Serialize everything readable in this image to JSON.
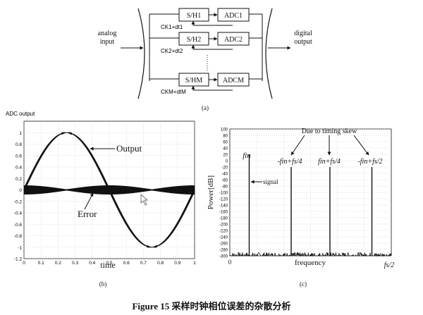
{
  "figure_caption": "Figure 15 采样时钟相位误差的杂散分析",
  "panel_a": {
    "sub_label": "(a)",
    "analog_input": [
      "analog",
      "input"
    ],
    "digital_output": [
      "digital",
      "output"
    ],
    "channels": [
      {
        "sh": "S/H1",
        "adc": "ADC1",
        "clock": "CK1+dt1"
      },
      {
        "sh": "S/H2",
        "adc": "ADC2",
        "clock": "CK2+dt2"
      },
      {
        "sh": "S/HM",
        "adc": "ADCM",
        "clock": "CKM+dtM"
      }
    ]
  },
  "panel_b": {
    "sub_label": "(b)",
    "title": "ADC output",
    "xlabel": "time",
    "output_label": "Output",
    "error_label": "Error",
    "x_ticks": [
      "0",
      "0.1",
      "0.2",
      "0.3",
      "0.4",
      "0.5",
      "0.6",
      "0.7",
      "0.8",
      "0.9",
      "1"
    ],
    "y_ticks": [
      "1",
      "0.8",
      "0.6",
      "0.4",
      "0.2",
      "0",
      "-0.2",
      "-0.4",
      "-0.6",
      "-0.8",
      "-1",
      "-1.2"
    ]
  },
  "panel_c": {
    "sub_label": "(c)",
    "ylabel": "Power[dB]",
    "xlabel": "frequency",
    "x_start": "0",
    "x_end": "fs/2",
    "skew_annotation": "Due to timing skew",
    "signal_label": "signal",
    "y_ticks": [
      "100",
      "80",
      "60",
      "40",
      "20",
      "0",
      "-20",
      "-40",
      "-60",
      "-80",
      "-100",
      "-120",
      "-140",
      "-160",
      "-180",
      "-200",
      "-220",
      "-240",
      "-260",
      "-280",
      "-300"
    ],
    "spur_labels": [
      "fin",
      "-fin+fs/4",
      "fin+fs/4",
      "-fin+fs/2"
    ]
  },
  "chart_data": [
    {
      "type": "line",
      "title": "ADC output",
      "xlabel": "time",
      "ylabel": "",
      "xlim": [
        0,
        1
      ],
      "ylim": [
        -1.2,
        1.2
      ],
      "grid": true,
      "series": [
        {
          "name": "Output",
          "x": [
            0,
            0.125,
            0.25,
            0.375,
            0.5,
            0.625,
            0.75,
            0.875,
            1
          ],
          "values": [
            0,
            0.707,
            1,
            0.707,
            0,
            -0.707,
            -1,
            -0.707,
            0
          ]
        },
        {
          "name": "Error",
          "x": [
            0,
            0.125,
            0.25,
            0.375,
            0.5,
            0.625,
            0.75,
            0.875,
            1
          ],
          "values": [
            0.07,
            0.05,
            0,
            0.05,
            0.07,
            0.05,
            0,
            0.05,
            0.07
          ]
        }
      ]
    },
    {
      "type": "line",
      "xlabel": "frequency",
      "ylabel": "Power[dB]",
      "ylim": [
        -300,
        100
      ],
      "grid": true,
      "noise_floor_db": -300,
      "spurs": [
        {
          "label": "fin",
          "freq_fraction_of_fs2": 0.12,
          "db": 20
        },
        {
          "label": "-fin+fs/4",
          "freq_fraction_of_fs2": 0.38,
          "db": -20
        },
        {
          "label": "fin+fs/4",
          "freq_fraction_of_fs2": 0.62,
          "db": -20
        },
        {
          "label": "-fin+fs/2",
          "freq_fraction_of_fs2": 0.88,
          "db": -20
        }
      ]
    }
  ]
}
